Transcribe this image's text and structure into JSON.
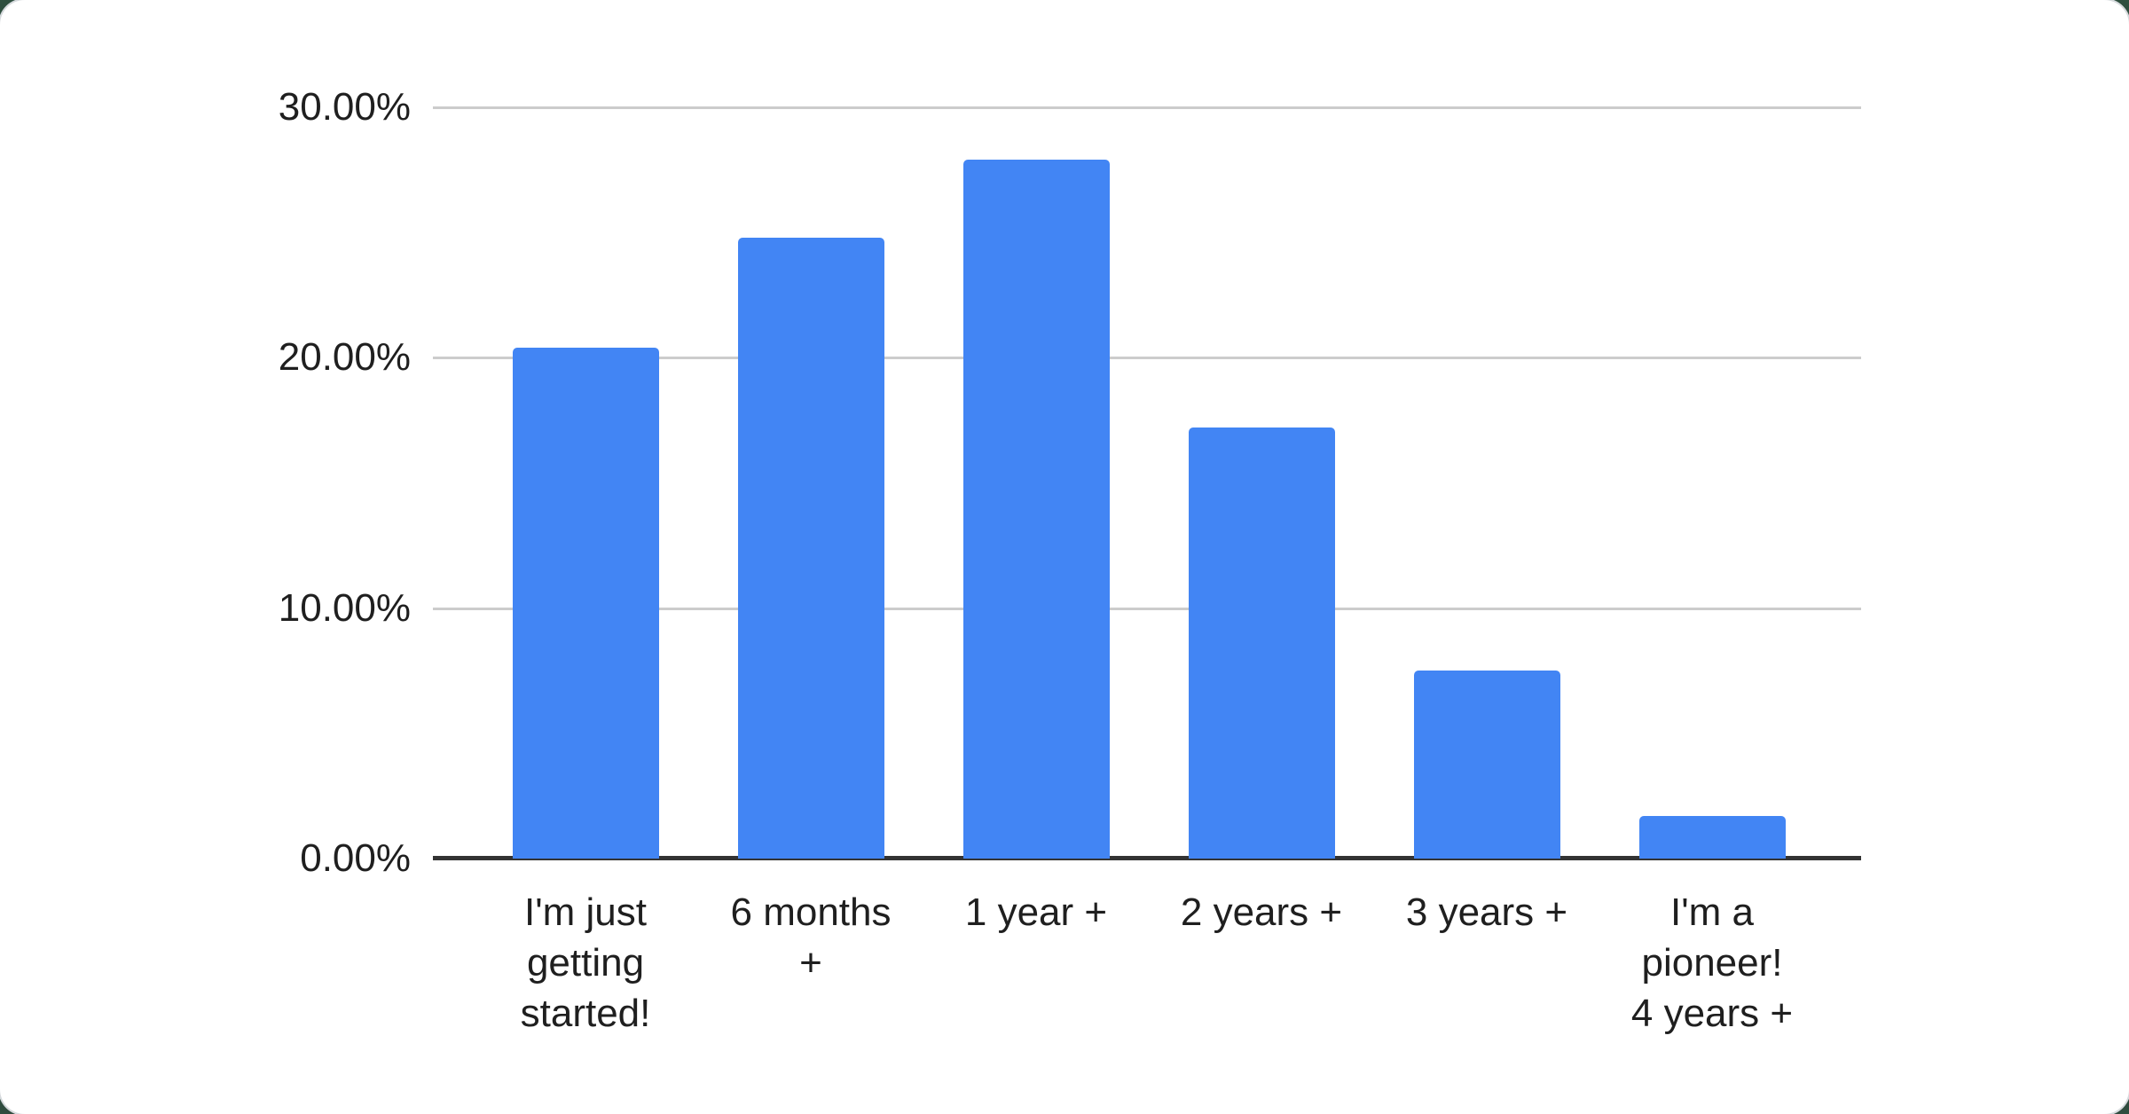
{
  "page": {
    "background_color": "#2f4f3f",
    "card_color": "#ffffff"
  },
  "chart_data": {
    "type": "bar",
    "title": "",
    "categories": [
      "I'm just getting started!",
      "6 months +",
      "1 year +",
      "2 years +",
      "3 years +",
      "I'm a pioneer! 4 years +"
    ],
    "category_lines": [
      [
        "I'm just",
        "getting",
        "started!"
      ],
      [
        "6 months",
        "+"
      ],
      [
        "1 year +"
      ],
      [
        "2 years +"
      ],
      [
        "3 years +"
      ],
      [
        "I'm a",
        "pioneer!",
        "4 years +"
      ]
    ],
    "values": [
      20.4,
      24.8,
      27.9,
      17.2,
      7.5,
      1.7
    ],
    "unit": "%",
    "xlabel": "",
    "ylabel": "",
    "ylim": [
      0,
      30
    ],
    "y_ticks": [
      "0.00%",
      "10.00%",
      "20.00%",
      "30.00%"
    ],
    "y_tick_values": [
      0,
      10,
      20,
      30
    ],
    "grid": true,
    "legend_position": "none",
    "bar_color": "#4285f4",
    "gridline_color": "#cccccc",
    "axis_line_color": "#333333",
    "label_color": "#1f1f1f"
  }
}
